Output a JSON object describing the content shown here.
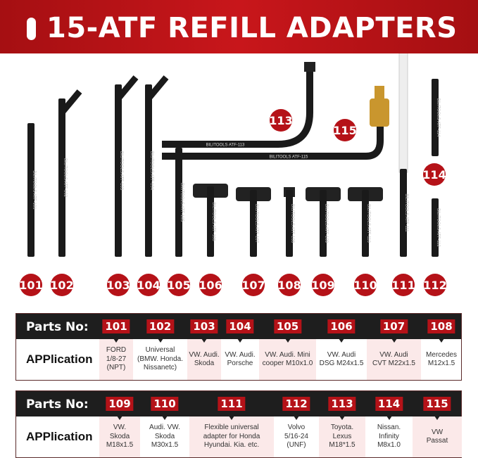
{
  "title": "15-ATF REFILL ADAPTERS",
  "brand": "BILITOOLS",
  "colors": {
    "accent": "#b51218",
    "dark": "#1e1e1e",
    "pink": "#fbe9e9",
    "tool": "#1a1a1a",
    "brass": "#c9962e"
  },
  "tools": [
    {
      "num": "101",
      "engraving": "BILITOOLS ATF-101"
    },
    {
      "num": "102",
      "engraving": "BILITOOLS ATF-102"
    },
    {
      "num": "103",
      "engraving": "BILITOOLS ATF-103"
    },
    {
      "num": "104",
      "engraving": "BILITOOLS ATF-104"
    },
    {
      "num": "105",
      "engraving": "BILITOOLS ATF-105"
    },
    {
      "num": "106",
      "engraving": "BILITOOLS ATF-106"
    },
    {
      "num": "107",
      "engraving": "BILITOOLS ATF-107"
    },
    {
      "num": "108",
      "engraving": "BILITOOLS ATF-108"
    },
    {
      "num": "109",
      "engraving": "BILITOOLS ATF-109"
    },
    {
      "num": "110",
      "engraving": "BILITOOLS ATF-110"
    },
    {
      "num": "111",
      "engraving": "BILITOOLS ATF-111"
    },
    {
      "num": "112",
      "engraving": "BILITOOLS ATF-112"
    },
    {
      "num": "113",
      "engraving": "BILITOOLS ATF-113"
    },
    {
      "num": "114",
      "engraving": "BILITOOLS ATF-114"
    },
    {
      "num": "115",
      "engraving": "BILITOOLS ATF-115"
    }
  ],
  "tables": [
    {
      "parts_label": "Parts No:",
      "app_label": "APPlication",
      "parts": [
        {
          "num": "101",
          "app": "FORD\n1/8-27\n(NPT)"
        },
        {
          "num": "102",
          "app": "Universal\n(BMW. Honda.\nNissanetc)"
        },
        {
          "num": "103",
          "app": "VW. Audi.\nSkoda"
        },
        {
          "num": "104",
          "app": "VW. Audi.\nPorsche"
        },
        {
          "num": "105",
          "app": "VW. Audi. Mini\ncooper M10x1.0"
        },
        {
          "num": "106",
          "app": "VW. Audi\nDSG M24x1.5"
        },
        {
          "num": "107",
          "app": "VW. Audi\nCVT M22x1.5"
        },
        {
          "num": "108",
          "app": "Mercedes\nM12x1.5"
        }
      ]
    },
    {
      "parts_label": "Parts No:",
      "app_label": "APPlication",
      "parts": [
        {
          "num": "109",
          "app": "VW.\nSkoda\nM18x1.5"
        },
        {
          "num": "110",
          "app": "Audi. VW.\nSkoda\nM30x1.5"
        },
        {
          "num": "111",
          "app": "Flexible universal\nadapter for Honda\nHyundai. Kia. etc."
        },
        {
          "num": "112",
          "app": "Volvo\n5/16-24\n(UNF)"
        },
        {
          "num": "113",
          "app": "Toyota.\nLexus\nM18*1.5"
        },
        {
          "num": "114",
          "app": "Nissan.\nInfinity\nM8x1.0"
        },
        {
          "num": "115",
          "app": "VW\nPassat"
        }
      ]
    }
  ]
}
